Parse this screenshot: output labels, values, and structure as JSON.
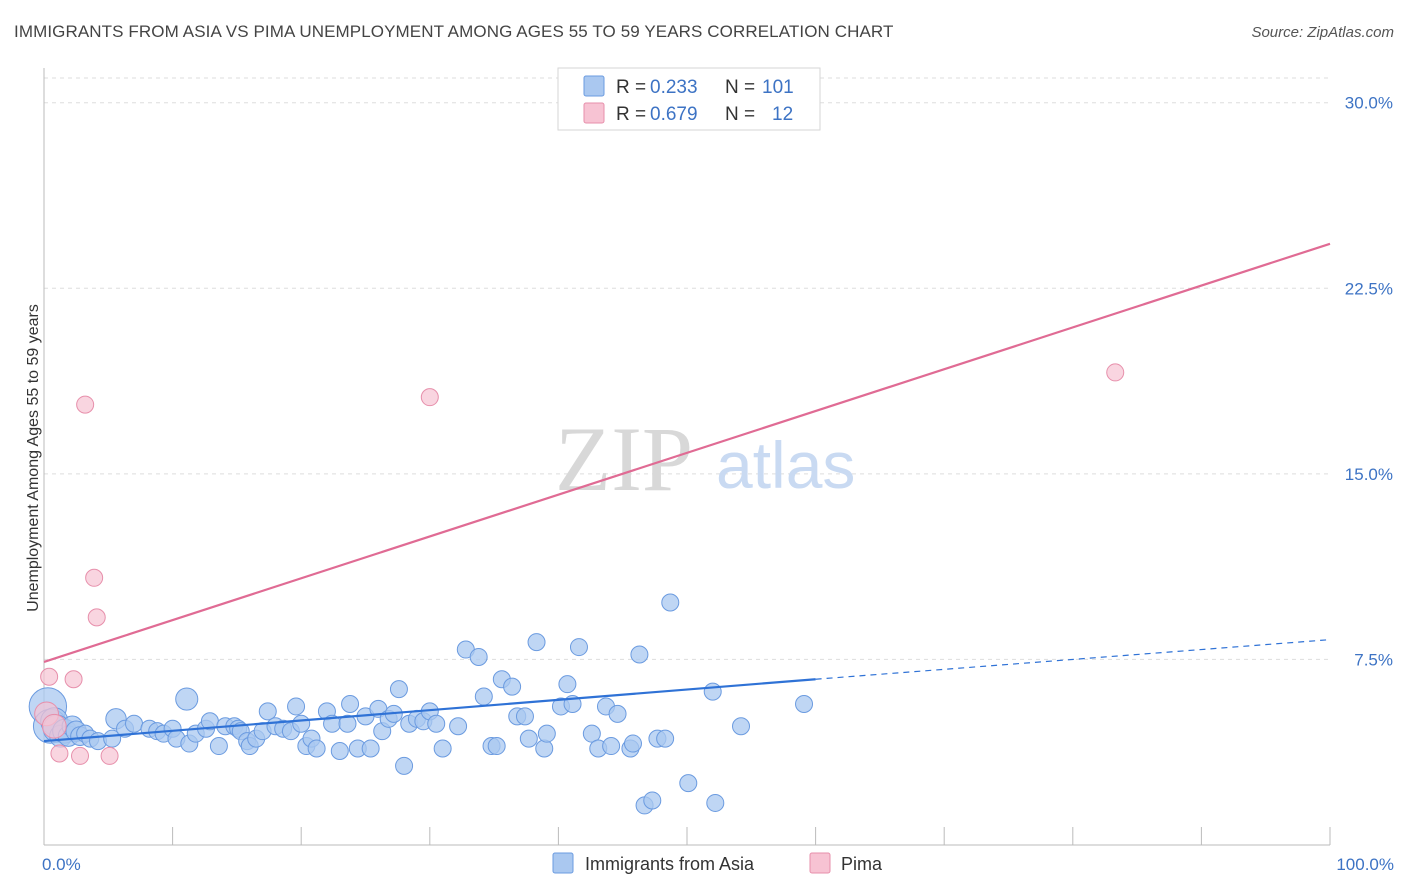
{
  "title": "IMMIGRANTS FROM ASIA VS PIMA UNEMPLOYMENT AMONG AGES 55 TO 59 YEARS CORRELATION CHART",
  "source": "Source: ZipAtlas.com",
  "watermark": {
    "zip": "ZIP",
    "atlas": "atlas"
  },
  "colors": {
    "blue_fill": "#aac8f0",
    "blue_stroke": "#6b9be0",
    "blue_line": "#2f72d6",
    "pink_fill": "#f7c3d3",
    "pink_stroke": "#e78fab",
    "pink_line": "#e06b94",
    "tick_text": "#3d73c4",
    "grid": "#dddddd"
  },
  "legend": {
    "rows": [
      {
        "r_label": "R =",
        "r_value": "0.233",
        "n_label": "N =",
        "n_value": "101",
        "color": "blue"
      },
      {
        "r_label": "R =",
        "r_value": "0.679",
        "n_label": "N =",
        "n_value": "12",
        "color": "pink"
      }
    ]
  },
  "bottom_legend": [
    {
      "label": "Immigrants from Asia",
      "color": "blue"
    },
    {
      "label": "Pima",
      "color": "pink"
    }
  ],
  "chart_data": {
    "type": "scatter",
    "title": "IMMIGRANTS FROM ASIA VS PIMA UNEMPLOYMENT AMONG AGES 55 TO 59 YEARS CORRELATION CHART",
    "xlabel": "",
    "ylabel": "Unemployment Among Ages 55 to 59 years",
    "xlim": [
      0,
      100
    ],
    "ylim": [
      0,
      31
    ],
    "x_tick_labels": [
      {
        "value": 0,
        "label": "0.0%"
      },
      {
        "value": 100,
        "label": "100.0%"
      }
    ],
    "y_tick_labels": [
      {
        "value": 7.5,
        "label": "7.5%"
      },
      {
        "value": 15,
        "label": "15.0%"
      },
      {
        "value": 22.5,
        "label": "22.5%"
      },
      {
        "value": 30,
        "label": "30.0%"
      }
    ],
    "grid": true,
    "legend_position": "top-center",
    "series": [
      {
        "name": "Immigrants from Asia",
        "color": "blue",
        "points": [
          [
            0.3,
            5.6,
            2.2
          ],
          [
            0.5,
            4.8,
            2.0
          ],
          [
            0.8,
            5.0,
            1.6
          ],
          [
            1.0,
            4.7,
            1.6
          ],
          [
            1.3,
            4.4,
            1.3
          ],
          [
            1.6,
            4.6,
            1.4
          ],
          [
            1.9,
            4.4,
            1.2
          ],
          [
            2.2,
            4.8,
            1.2
          ],
          [
            2.5,
            4.6,
            1.2
          ],
          [
            2.8,
            4.4,
            1.1
          ],
          [
            3.2,
            4.5,
            1.0
          ],
          [
            3.6,
            4.3,
            1.0
          ],
          [
            4.2,
            4.2,
            1.0
          ],
          [
            5.3,
            4.3,
            1.0
          ],
          [
            5.6,
            5.1,
            1.2
          ],
          [
            6.3,
            4.7,
            1.0
          ],
          [
            7.0,
            4.9,
            1.0
          ],
          [
            8.2,
            4.7,
            1.0
          ],
          [
            8.8,
            4.6,
            1.0
          ],
          [
            9.3,
            4.5,
            1.0
          ],
          [
            10.0,
            4.7,
            1.0
          ],
          [
            10.3,
            4.3,
            1.0
          ],
          [
            11.1,
            5.9,
            1.3
          ],
          [
            11.3,
            4.1,
            1.0
          ],
          [
            11.8,
            4.5,
            1.0
          ],
          [
            12.6,
            4.7,
            1.0
          ],
          [
            12.9,
            5.0,
            1.0
          ],
          [
            13.6,
            4.0,
            1.0
          ],
          [
            14.1,
            4.8,
            1.0
          ],
          [
            14.8,
            4.8,
            1.0
          ],
          [
            15.1,
            4.7,
            1.0
          ],
          [
            15.3,
            4.6,
            1.0
          ],
          [
            15.8,
            4.2,
            1.0
          ],
          [
            16.0,
            4.0,
            1.0
          ],
          [
            16.5,
            4.3,
            1.0
          ],
          [
            17.0,
            4.6,
            1.0
          ],
          [
            17.4,
            5.4,
            1.0
          ],
          [
            18.0,
            4.8,
            1.0
          ],
          [
            18.6,
            4.7,
            1.0
          ],
          [
            19.2,
            4.6,
            1.0
          ],
          [
            19.6,
            5.6,
            1.0
          ],
          [
            20.0,
            4.9,
            1.0
          ],
          [
            20.4,
            4.0,
            1.0
          ],
          [
            20.8,
            4.3,
            1.0
          ],
          [
            21.2,
            3.9,
            1.0
          ],
          [
            22.0,
            5.4,
            1.0
          ],
          [
            22.4,
            4.9,
            1.0
          ],
          [
            23.0,
            3.8,
            1.0
          ],
          [
            23.6,
            4.9,
            1.0
          ],
          [
            23.8,
            5.7,
            1.0
          ],
          [
            24.4,
            3.9,
            1.0
          ],
          [
            25.0,
            5.2,
            1.0
          ],
          [
            25.4,
            3.9,
            1.0
          ],
          [
            26.0,
            5.5,
            1.0
          ],
          [
            26.3,
            4.6,
            1.0
          ],
          [
            26.8,
            5.1,
            1.0
          ],
          [
            27.2,
            5.3,
            1.0
          ],
          [
            27.6,
            6.3,
            1.0
          ],
          [
            28.0,
            3.2,
            1.0
          ],
          [
            28.4,
            4.9,
            1.0
          ],
          [
            29.0,
            5.1,
            1.0
          ],
          [
            29.5,
            5.0,
            1.0
          ],
          [
            30.0,
            5.4,
            1.0
          ],
          [
            30.5,
            4.9,
            1.0
          ],
          [
            31.0,
            3.9,
            1.0
          ],
          [
            32.2,
            4.8,
            1.0
          ],
          [
            32.8,
            7.9,
            1.0
          ],
          [
            33.8,
            7.6,
            1.0
          ],
          [
            34.2,
            6.0,
            1.0
          ],
          [
            34.8,
            4.0,
            1.0
          ],
          [
            35.6,
            6.7,
            1.0
          ],
          [
            35.2,
            4.0,
            1.0
          ],
          [
            36.4,
            6.4,
            1.0
          ],
          [
            36.8,
            5.2,
            1.0
          ],
          [
            37.4,
            5.2,
            1.0
          ],
          [
            37.7,
            4.3,
            1.0
          ],
          [
            38.3,
            8.2,
            1.0
          ],
          [
            38.9,
            3.9,
            1.0
          ],
          [
            39.1,
            4.5,
            1.0
          ],
          [
            40.2,
            5.6,
            1.0
          ],
          [
            40.7,
            6.5,
            1.0
          ],
          [
            41.1,
            5.7,
            1.0
          ],
          [
            41.6,
            8.0,
            1.0
          ],
          [
            42.6,
            4.5,
            1.0
          ],
          [
            43.1,
            3.9,
            1.0
          ],
          [
            43.7,
            5.6,
            1.0
          ],
          [
            44.1,
            4.0,
            1.0
          ],
          [
            44.6,
            5.3,
            1.0
          ],
          [
            45.6,
            3.9,
            1.0
          ],
          [
            45.8,
            4.1,
            1.0
          ],
          [
            46.3,
            7.7,
            1.0
          ],
          [
            46.7,
            1.6,
            1.0
          ],
          [
            47.3,
            1.8,
            1.0
          ],
          [
            47.7,
            4.3,
            1.0
          ],
          [
            48.3,
            4.3,
            1.0
          ],
          [
            48.7,
            9.8,
            1.0
          ],
          [
            50.1,
            2.5,
            1.0
          ],
          [
            52.0,
            6.2,
            1.0
          ],
          [
            52.2,
            1.7,
            1.0
          ],
          [
            54.2,
            4.8,
            1.0
          ],
          [
            59.1,
            5.7,
            1.0
          ]
        ]
      },
      {
        "name": "Pima",
        "color": "pink",
        "points": [
          [
            0.2,
            5.3,
            1.4
          ],
          [
            0.4,
            6.8,
            1.0
          ],
          [
            0.8,
            4.8,
            1.4
          ],
          [
            1.2,
            3.7,
            1.0
          ],
          [
            2.3,
            6.7,
            1.0
          ],
          [
            2.8,
            3.6,
            1.0
          ],
          [
            3.2,
            17.8,
            1.0
          ],
          [
            3.9,
            10.8,
            1.0
          ],
          [
            4.1,
            9.2,
            1.0
          ],
          [
            5.1,
            3.6,
            1.0
          ],
          [
            30.0,
            18.1,
            1.0
          ],
          [
            83.3,
            19.1,
            1.0
          ]
        ]
      }
    ],
    "trend_lines": [
      {
        "series": "Immigrants from Asia",
        "x": [
          0,
          60
        ],
        "y": [
          4.2,
          6.7
        ],
        "style": "solid"
      },
      {
        "series": "Immigrants from Asia",
        "x": [
          60,
          100
        ],
        "y": [
          6.7,
          8.3
        ],
        "style": "dashed"
      },
      {
        "series": "Pima",
        "x": [
          0,
          100
        ],
        "y": [
          7.4,
          24.3
        ],
        "style": "solid"
      }
    ]
  }
}
